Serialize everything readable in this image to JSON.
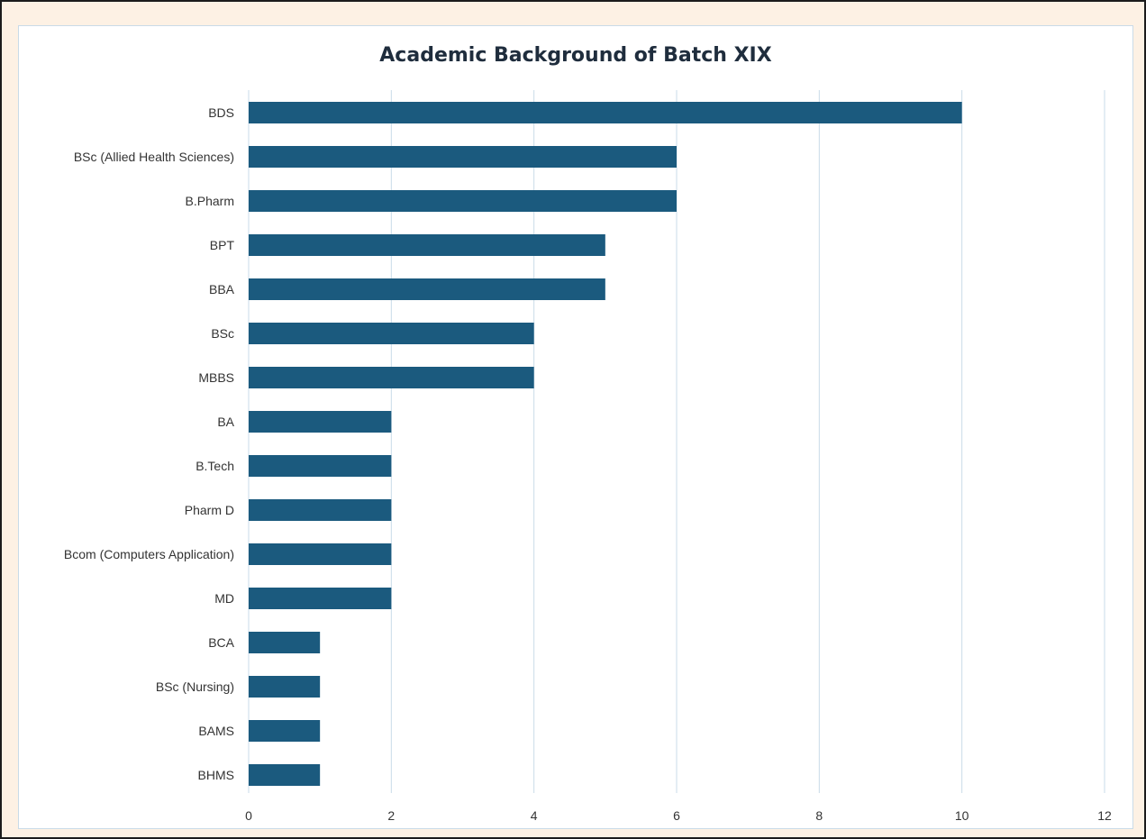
{
  "chart_data": {
    "type": "bar",
    "orientation": "horizontal",
    "title": "Academic Background of Batch XIX",
    "xlabel": "",
    "ylabel": "",
    "categories": [
      "BDS",
      "BSc (Allied Health Sciences)",
      "B.Pharm",
      "BPT",
      "BBA",
      "BSc",
      "MBBS",
      "BA",
      "B.Tech",
      "Pharm D",
      "Bcom (Computers Application)",
      "MD",
      "BCA",
      "BSc (Nursing)",
      "BAMS",
      "BHMS"
    ],
    "values": [
      10,
      6,
      6,
      5,
      5,
      4,
      4,
      2,
      2,
      2,
      2,
      2,
      1,
      1,
      1,
      1
    ],
    "xlim": [
      0,
      12
    ],
    "xticks": [
      0,
      2,
      4,
      6,
      8,
      10,
      12
    ],
    "grid": "vertical",
    "legend": "none",
    "bar_color": "#1b5a7e",
    "grid_color": "#c9dbe8"
  }
}
